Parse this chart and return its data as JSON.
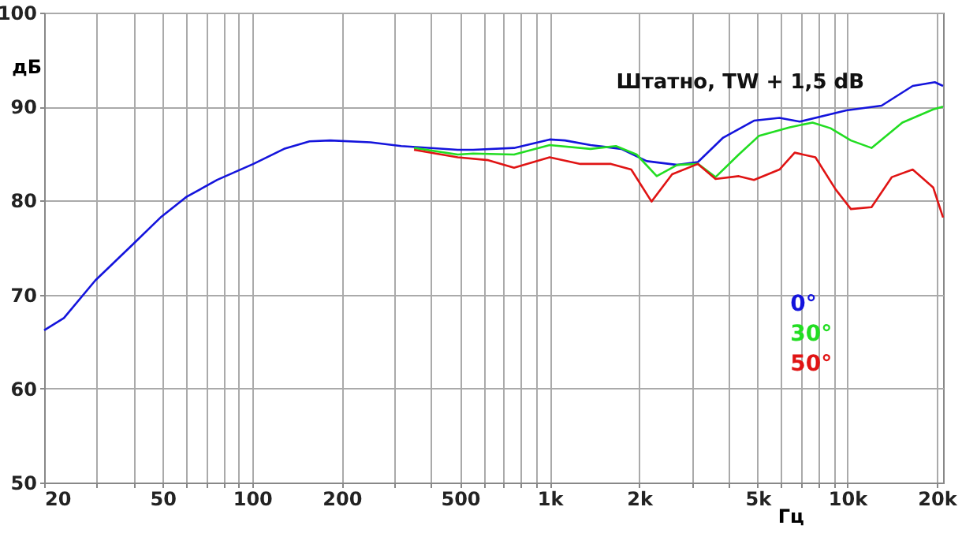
{
  "chart_data": {
    "type": "line",
    "title": "Штатно, TW + 1,5 dB",
    "xlabel": "Гц",
    "ylabel": "дБ",
    "log": "x",
    "grid": true,
    "legend": "bottom right",
    "xlim": [
      20,
      21000
    ],
    "ylim": [
      50,
      100
    ],
    "yticks": [
      50,
      60,
      70,
      80,
      90,
      100
    ],
    "xticks": [
      20,
      {
        "value": 30,
        "label": null
      },
      {
        "value": 40,
        "label": null
      },
      50,
      {
        "value": 60,
        "label": null
      },
      {
        "value": 70,
        "label": null
      },
      {
        "value": 80,
        "label": null
      },
      {
        "value": 90,
        "label": null
      },
      100,
      200,
      {
        "value": 300,
        "label": null
      },
      {
        "value": 400,
        "label": null
      },
      500,
      {
        "value": 600,
        "label": null
      },
      {
        "value": 700,
        "label": null
      },
      {
        "value": 800,
        "label": null
      },
      {
        "value": 900,
        "label": null
      },
      {
        "value": 1000,
        "label": "1k"
      },
      {
        "value": 2000,
        "label": "2k"
      },
      {
        "value": 3000,
        "label": null
      },
      {
        "value": 4000,
        "label": null
      },
      {
        "value": 5000,
        "label": "5k"
      },
      {
        "value": 6000,
        "label": null
      },
      {
        "value": 7000,
        "label": null
      },
      {
        "value": 8000,
        "label": null
      },
      {
        "value": 9000,
        "label": null
      },
      {
        "value": 10000,
        "label": "10k"
      },
      {
        "value": 20000,
        "label": "20k"
      }
    ],
    "series": [
      {
        "name": "0°",
        "color": "#1414dc",
        "x": [
          20,
          23.3,
          29.7,
          39.9,
          49.6,
          60.2,
          76.3,
          101,
          128,
          156,
          183,
          250,
          317,
          491,
          553,
          759,
          1000,
          1126,
          1372,
          1740,
          2120,
          2685,
          3150,
          3830,
          4860,
          5920,
          6930,
          9930,
          13050,
          16600,
          19700,
          21000
        ],
        "values": [
          66.2,
          67.5,
          71.5,
          75.4,
          78.3,
          80.4,
          82.2,
          83.9,
          85.5,
          86.3,
          86.4,
          86.2,
          85.8,
          85.4,
          85.4,
          85.6,
          86.5,
          86.4,
          85.9,
          85.5,
          84.2,
          83.8,
          84.1,
          86.7,
          88.5,
          88.8,
          88.4,
          89.6,
          90.1,
          92.2,
          92.6,
          92.2
        ]
      },
      {
        "name": "30°",
        "color": "#22dd22",
        "x": [
          350,
          491,
          553,
          759,
          1000,
          1372,
          1670,
          1960,
          2290,
          2685,
          3150,
          3610,
          4320,
          5060,
          6410,
          7650,
          8790,
          10290,
          12070,
          15320,
          19450,
          21000
        ],
        "values": [
          85.6,
          84.9,
          85.0,
          84.9,
          85.9,
          85.5,
          85.8,
          84.9,
          82.6,
          83.8,
          83.9,
          82.5,
          84.9,
          86.9,
          87.8,
          88.3,
          87.7,
          86.4,
          85.6,
          88.3,
          89.7,
          90.0
        ]
      },
      {
        "name": "50°",
        "color": "#e01414",
        "x": [
          350,
          491,
          622,
          759,
          1000,
          1268,
          1608,
          1880,
          2200,
          2580,
          3150,
          3610,
          4320,
          4860,
          5920,
          6660,
          7820,
          9140,
          10290,
          12070,
          14130,
          16600,
          19450,
          21000
        ],
        "values": [
          85.4,
          84.6,
          84.3,
          83.5,
          84.6,
          83.9,
          83.9,
          83.3,
          79.9,
          82.8,
          83.9,
          82.3,
          82.6,
          82.2,
          83.3,
          85.1,
          84.6,
          81.2,
          79.1,
          79.3,
          82.5,
          83.3,
          81.4,
          78.2
        ]
      }
    ]
  }
}
